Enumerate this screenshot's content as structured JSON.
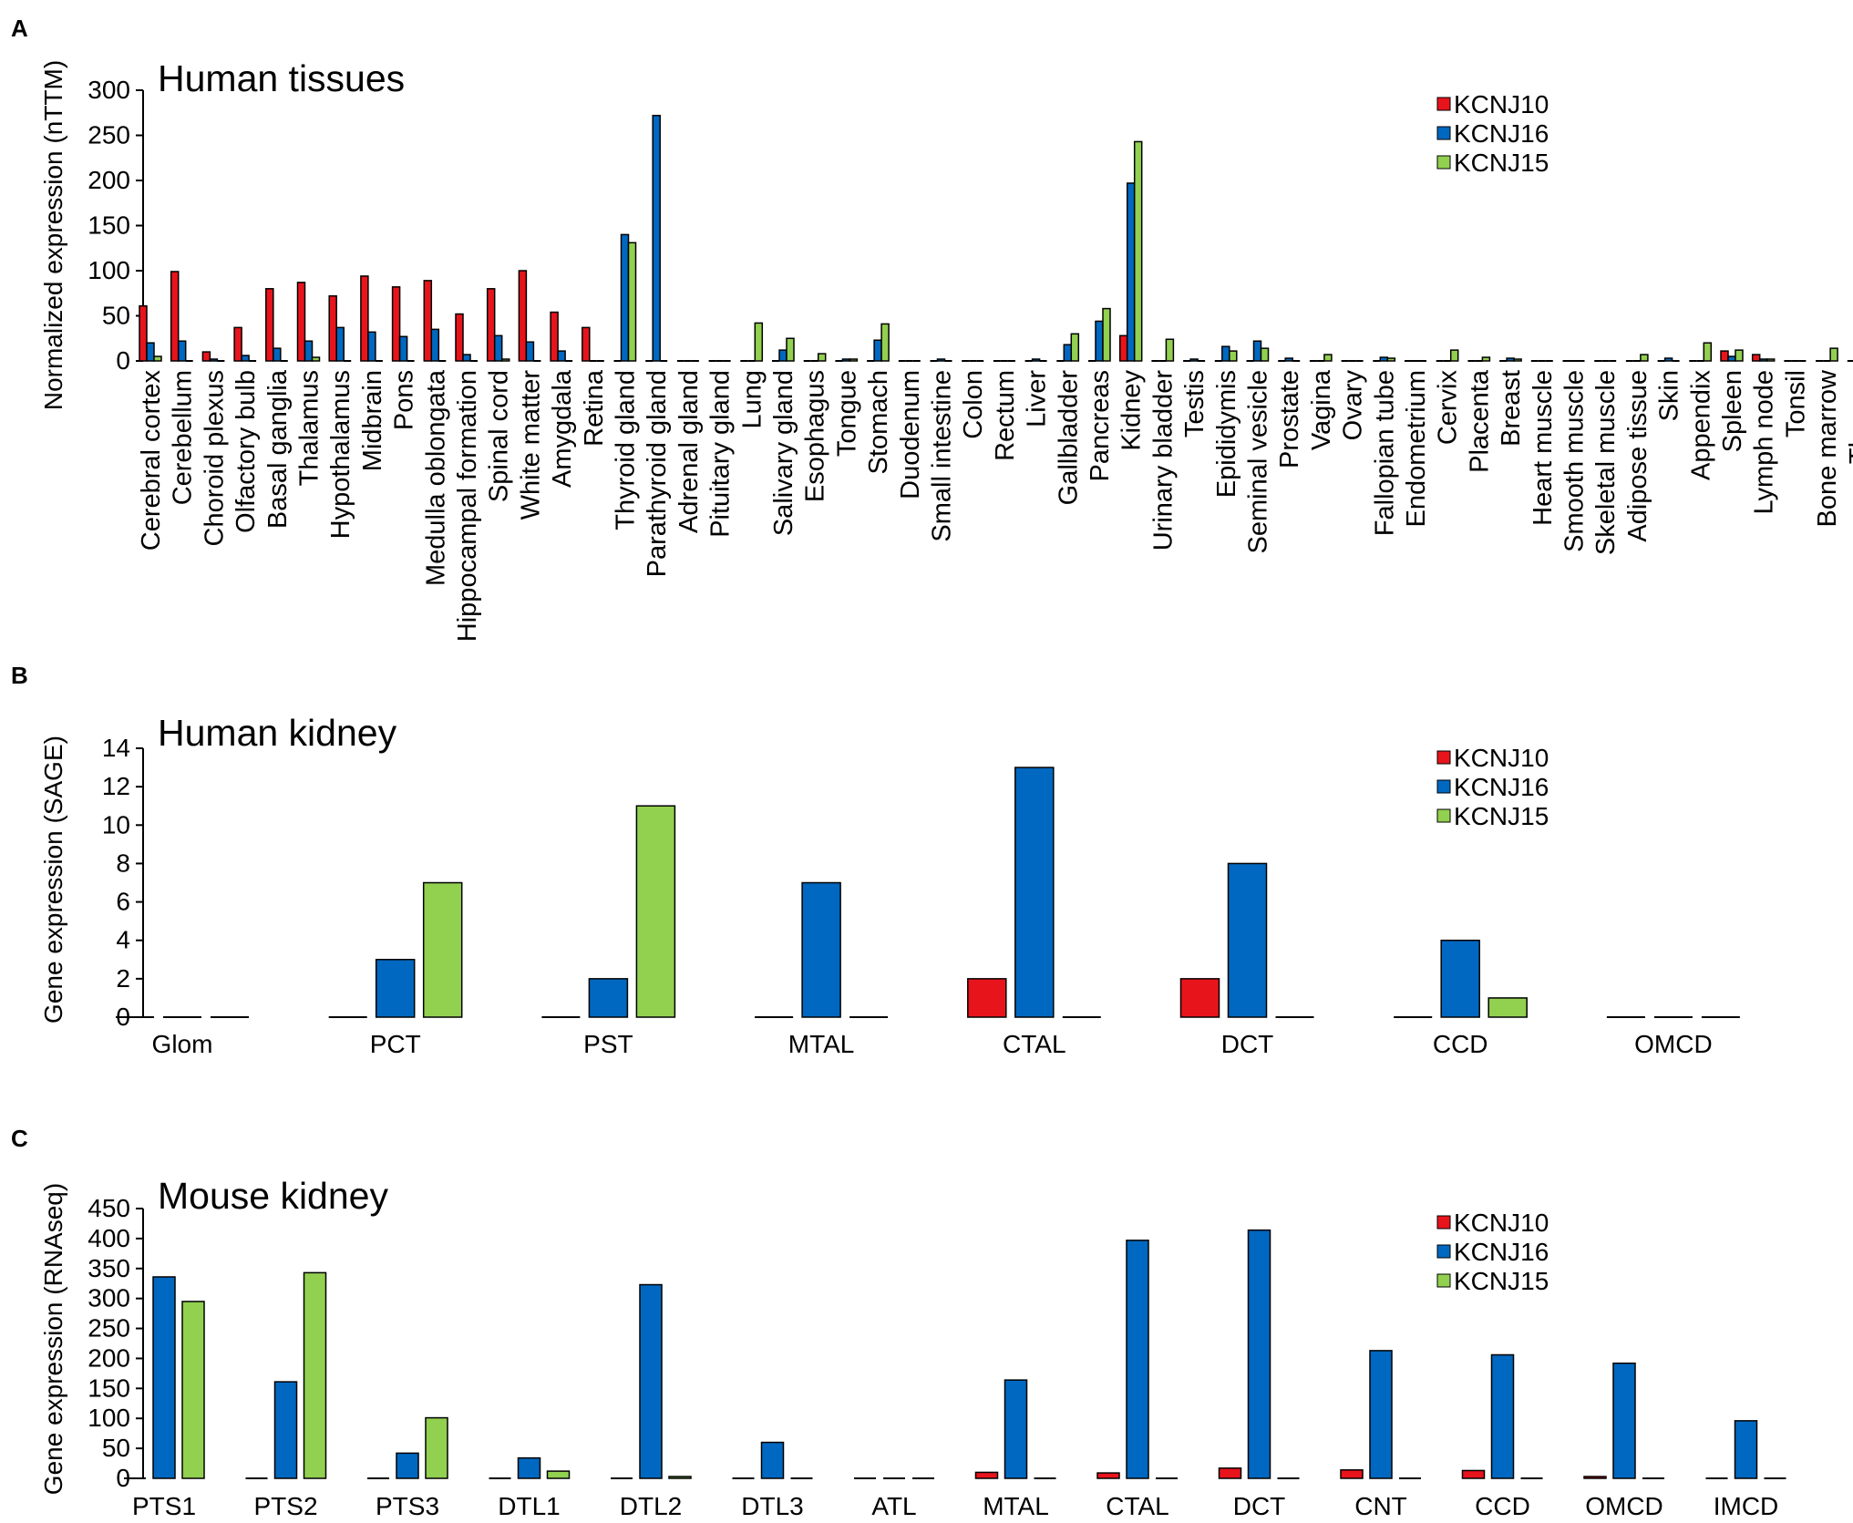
{
  "series_names": [
    "KCNJ10",
    "KCNJ16",
    "KCNJ15"
  ],
  "colors": {
    "KCNJ10": "#e8141c",
    "KCNJ16": "#0068c0",
    "KCNJ15": "#92d050",
    "stroke": "#000000"
  },
  "chart_data": [
    {
      "panel": "A",
      "type": "bar",
      "title": "Human tissues",
      "ylabel": "Normalized expression (nTTM)",
      "xlabel": "",
      "ylim": [
        0,
        300
      ],
      "yticks": [
        0,
        50,
        100,
        150,
        200,
        250,
        300
      ],
      "legend": "top-right",
      "categories": [
        "Cerebral cortex",
        "Cerebellum",
        "Choroid plexus",
        "Olfactory bulb",
        "Basal ganglia",
        "Thalamus",
        "Hypothalamus",
        "Midbrain",
        "Pons",
        "Medulla oblongata",
        "Hippocampal formation",
        "Spinal cord",
        "White matter",
        "Amygdala",
        "Retina",
        "Thyroid gland",
        "Parathyroid gland",
        "Adrenal gland",
        "Pituitary gland",
        "Lung",
        "Salivary gland",
        "Esophagus",
        "Tongue",
        "Stomach",
        "Duodenum",
        "Small intestine",
        "Colon",
        "Rectum",
        "Liver",
        "Gallbladder",
        "Pancreas",
        "Kidney",
        "Urinary bladder",
        "Testis",
        "Epididymis",
        "Seminal vesicle",
        "Prostate",
        "Vagina",
        "Ovary",
        "Fallopian tube",
        "Endometrium",
        "Cervix",
        "Placenta",
        "Breast",
        "Heart muscle",
        "Smooth muscle",
        "Skeletal muscle",
        "Adipose tissue",
        "Skin",
        "Appendix",
        "Spleen",
        "Lymph node",
        "Tonsil",
        "Bone marrow",
        "Thymus"
      ],
      "series": [
        {
          "name": "KCNJ10",
          "values": [
            61,
            99,
            10,
            37,
            80,
            87,
            72,
            94,
            82,
            89,
            52,
            80,
            100,
            54,
            37,
            0,
            0,
            0,
            0,
            0,
            0,
            0,
            0,
            0,
            0,
            0,
            0,
            0,
            1,
            0,
            0,
            28,
            0,
            0,
            0,
            0,
            0,
            0,
            0,
            0,
            0,
            0,
            0,
            1,
            0,
            0,
            0,
            0,
            0,
            0,
            11,
            7,
            1,
            0,
            0
          ]
        },
        {
          "name": "KCNJ16",
          "values": [
            20,
            22,
            2,
            6,
            14,
            22,
            37,
            32,
            27,
            35,
            7,
            28,
            21,
            11,
            1,
            140,
            272,
            0,
            0,
            1,
            12,
            1,
            2,
            23,
            1,
            2,
            0,
            0,
            2,
            18,
            44,
            197,
            1,
            2,
            16,
            22,
            3,
            0,
            0,
            4,
            0,
            0,
            0,
            3,
            0,
            0,
            0,
            0,
            3,
            1,
            5,
            2,
            1,
            0,
            0
          ]
        },
        {
          "name": "KCNJ15",
          "values": [
            5,
            1,
            1,
            1,
            1,
            4,
            1,
            1,
            1,
            1,
            1,
            2,
            1,
            1,
            1,
            131,
            1,
            1,
            1,
            42,
            25,
            8,
            2,
            41,
            0,
            0,
            1,
            0,
            1,
            30,
            58,
            243,
            24,
            1,
            11,
            14,
            1,
            7,
            1,
            3,
            1,
            12,
            4,
            2,
            1,
            1,
            1,
            7,
            1,
            20,
            12,
            2,
            1,
            14,
            2
          ]
        }
      ]
    },
    {
      "panel": "B",
      "type": "bar",
      "title": "Human kidney",
      "ylabel": "Gene expression (SAGE)",
      "xlabel": "",
      "ylim": [
        0,
        14
      ],
      "yticks": [
        0,
        2,
        4,
        6,
        8,
        10,
        12,
        14
      ],
      "legend": "top-right",
      "categories": [
        "Glom",
        "PCT",
        "PST",
        "MTAL",
        "CTAL",
        "DCT",
        "CCD",
        "OMCD"
      ],
      "series": [
        {
          "name": "KCNJ10",
          "values": [
            0,
            0,
            0,
            0,
            2,
            2,
            0,
            0
          ]
        },
        {
          "name": "KCNJ16",
          "values": [
            0,
            3,
            2,
            7,
            13,
            8,
            4,
            0
          ]
        },
        {
          "name": "KCNJ15",
          "values": [
            0,
            7,
            11,
            0,
            0,
            0,
            1,
            0
          ]
        }
      ]
    },
    {
      "panel": "C",
      "type": "bar",
      "title": "Mouse kidney",
      "ylabel": "Gene expression (RNAseq)",
      "xlabel": "",
      "ylim": [
        0,
        450
      ],
      "yticks": [
        0,
        50,
        100,
        150,
        200,
        250,
        300,
        350,
        400,
        450
      ],
      "legend": "top-right",
      "categories": [
        "PTS1",
        "PTS2",
        "PTS3",
        "DTL1",
        "DTL2",
        "DTL3",
        "ATL",
        "MTAL",
        "CTAL",
        "DCT",
        "CNT",
        "CCD",
        "OMCD",
        "IMCD"
      ],
      "series": [
        {
          "name": "KCNJ10",
          "values": [
            0,
            0,
            0,
            1,
            0,
            0,
            0,
            10,
            9,
            17,
            14,
            13,
            3,
            0
          ]
        },
        {
          "name": "KCNJ16",
          "values": [
            336,
            161,
            42,
            34,
            323,
            60,
            0,
            164,
            397,
            414,
            213,
            206,
            192,
            96
          ]
        },
        {
          "name": "KCNJ15",
          "values": [
            295,
            343,
            101,
            12,
            3,
            1,
            1,
            1,
            1,
            1,
            1,
            1,
            1,
            1
          ]
        }
      ]
    }
  ]
}
